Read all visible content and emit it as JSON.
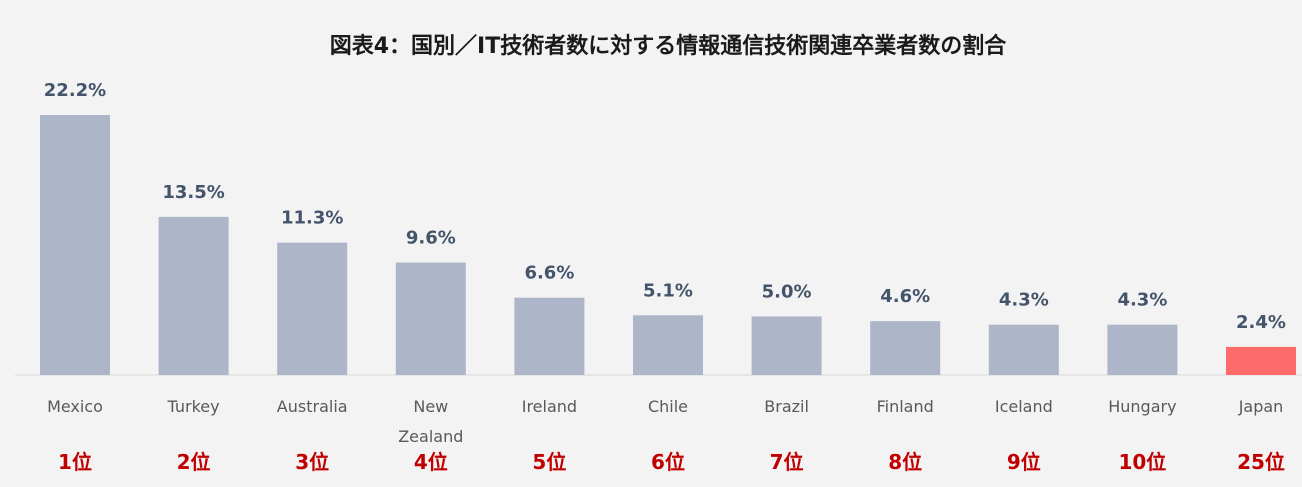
{
  "chart_data": {
    "type": "bar",
    "title": "図表4：国別／IT技術者数に対する情報通信技術関連卒業者数の割合",
    "categories": [
      "Mexico",
      "Turkey",
      "Australia",
      "New Zealand",
      "Ireland",
      "Chile",
      "Brazil",
      "Finland",
      "Iceland",
      "Hungary",
      "Japan"
    ],
    "values": [
      22.2,
      13.5,
      11.3,
      9.6,
      6.6,
      5.1,
      5.0,
      4.6,
      4.3,
      4.3,
      2.4
    ],
    "value_labels": [
      "22.2%",
      "13.5%",
      "11.3%",
      "9.6%",
      "6.6%",
      "5.1%",
      "5.0%",
      "4.6%",
      "4.3%",
      "4.3%",
      "2.4%"
    ],
    "ranks": [
      "1位",
      "2位",
      "3位",
      "4位",
      "5位",
      "6位",
      "7位",
      "8位",
      "9位",
      "10位",
      "25位"
    ],
    "colors": [
      "#adb6c8",
      "#adb6c8",
      "#adb6c8",
      "#adb6c8",
      "#adb6c8",
      "#adb6c8",
      "#adb6c8",
      "#adb6c8",
      "#adb6c8",
      "#adb6c8",
      "#ff6b6b"
    ]
  }
}
